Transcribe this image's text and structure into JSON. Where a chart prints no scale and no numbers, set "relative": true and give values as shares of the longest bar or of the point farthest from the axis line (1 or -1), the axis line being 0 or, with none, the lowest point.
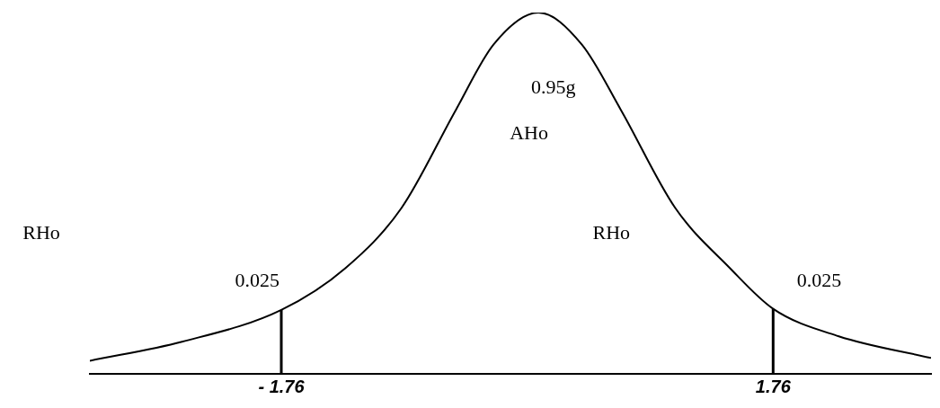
{
  "chart_data": {
    "type": "line",
    "relative": true,
    "x": [
      -3.13,
      -2.47,
      -1.76,
      -1.3,
      -0.9,
      -0.51,
      -0.24,
      0.08,
      0.39,
      0.67,
      1.06,
      1.45,
      1.76,
      2.23,
      2.89
    ],
    "series": [
      {
        "color": "#000000",
        "values": [
          0.036,
          0.089,
          0.177,
          0.293,
          0.459,
          0.731,
          0.912,
          1.0,
          0.912,
          0.731,
          0.459,
          0.293,
          0.18,
          0.104,
          0.044
        ]
      }
    ],
    "xlim": [
      -3.13,
      2.89
    ],
    "xticks": [
      {
        "value": -1.76,
        "label": "- 1.76"
      },
      {
        "value": 1.76,
        "label": "1.76"
      }
    ],
    "ref_lines": [
      {
        "axis": "x",
        "value": -1.76,
        "color": "#000000"
      },
      {
        "axis": "x",
        "value": 1.76,
        "color": "#000000"
      }
    ],
    "annotations": [
      "0.95g",
      "AHo",
      "RHo",
      "0.025",
      "0.025",
      "RHo"
    ],
    "grid": false,
    "legend": false,
    "marker": "none",
    "line_style": "solid"
  }
}
